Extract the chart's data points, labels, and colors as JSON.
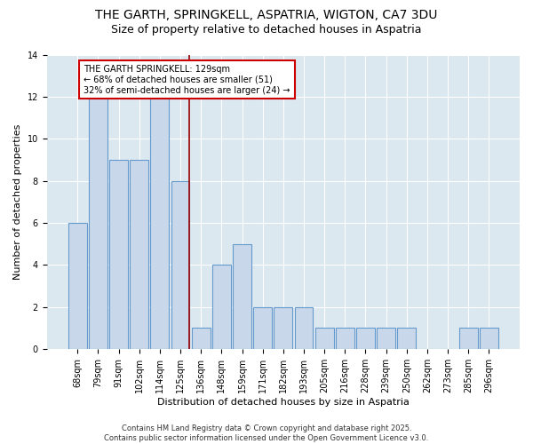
{
  "title1": "THE GARTH, SPRINGKELL, ASPATRIA, WIGTON, CA7 3DU",
  "title2": "Size of property relative to detached houses in Aspatria",
  "xlabel": "Distribution of detached houses by size in Aspatria",
  "ylabel": "Number of detached properties",
  "bar_labels": [
    "68sqm",
    "79sqm",
    "91sqm",
    "102sqm",
    "114sqm",
    "125sqm",
    "136sqm",
    "148sqm",
    "159sqm",
    "171sqm",
    "182sqm",
    "193sqm",
    "205sqm",
    "216sqm",
    "228sqm",
    "239sqm",
    "250sqm",
    "262sqm",
    "273sqm",
    "285sqm",
    "296sqm"
  ],
  "bar_values": [
    6,
    12,
    9,
    9,
    12,
    8,
    1,
    4,
    5,
    2,
    2,
    2,
    1,
    1,
    1,
    1,
    1,
    0,
    0,
    1,
    1
  ],
  "bar_color": "#c8d8ea",
  "bar_edgecolor": "#6699cc",
  "subject_line_index": 5,
  "subject_line_color": "#990000",
  "annotation_text": "THE GARTH SPRINGKELL: 129sqm\n← 68% of detached houses are smaller (51)\n32% of semi-detached houses are larger (24) →",
  "annotation_box_facecolor": "#ffffff",
  "annotation_box_edgecolor": "#cc0000",
  "ylim": [
    0,
    14
  ],
  "yticks": [
    0,
    2,
    4,
    6,
    8,
    10,
    12,
    14
  ],
  "plot_bg_color": "#dce8f0",
  "fig_bg_color": "#ffffff",
  "footer_text": "Contains HM Land Registry data © Crown copyright and database right 2025.\nContains public sector information licensed under the Open Government Licence v3.0.",
  "title1_fontsize": 10,
  "title2_fontsize": 9,
  "axis_label_fontsize": 8,
  "tick_fontsize": 7,
  "annotation_fontsize": 7,
  "footer_fontsize": 6
}
